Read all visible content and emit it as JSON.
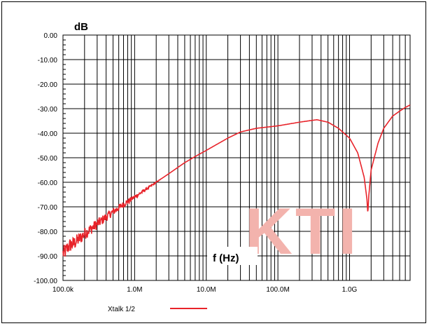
{
  "chart_data": {
    "type": "line",
    "title": "",
    "ylabel": "dB",
    "xlabel": "f (Hz)",
    "xscale": "log",
    "xlim": [
      100000,
      7000000000
    ],
    "ylim": [
      -100,
      0
    ],
    "grid": true,
    "xticklabels": [
      "100.0k",
      "1.0M",
      "10.0M",
      "100.0M",
      "1.0G"
    ],
    "xtickvalues": [
      100000,
      1000000,
      10000000,
      100000000,
      1000000000
    ],
    "yticklabels": [
      "0.00",
      "-10.00",
      "-20.00",
      "-30.00",
      "-40.00",
      "-50.00",
      "-60.00",
      "-70.00",
      "-80.00",
      "-90.00",
      "-100.00"
    ],
    "ytickvalues": [
      0,
      -10,
      -20,
      -30,
      -40,
      -50,
      -60,
      -70,
      -80,
      -90,
      -100
    ],
    "legend": {
      "placement": "bottom-left",
      "entries": [
        "Xtalk 1/2"
      ]
    },
    "watermark": "KTI",
    "series": [
      {
        "name": "Xtalk 1/2",
        "color": "#e8232a",
        "x": [
          100000,
          110000,
          120000,
          140000,
          170000,
          200000,
          300000,
          500000,
          700000,
          1000000,
          2000000,
          3000000,
          5000000,
          7000000,
          10000000,
          20000000,
          30000000,
          50000000,
          100000000,
          200000000,
          350000000,
          500000000,
          700000000,
          1000000000,
          1300000000,
          1600000000,
          1750000000,
          1800000000,
          1850000000,
          2000000000,
          2500000000,
          3000000000,
          4000000000,
          5000000000,
          6000000000,
          7000000000
        ],
        "values": [
          -89,
          -88,
          -86,
          -85,
          -83,
          -81,
          -77,
          -72,
          -69,
          -66,
          -60,
          -56.5,
          -52,
          -49.5,
          -47,
          -42,
          -39.5,
          -38,
          -37,
          -35.5,
          -34.5,
          -35.5,
          -38,
          -42,
          -48,
          -58,
          -67,
          -73,
          -66,
          -55,
          -44,
          -38,
          -33,
          -31,
          -29.5,
          -28.5
        ]
      }
    ]
  }
}
